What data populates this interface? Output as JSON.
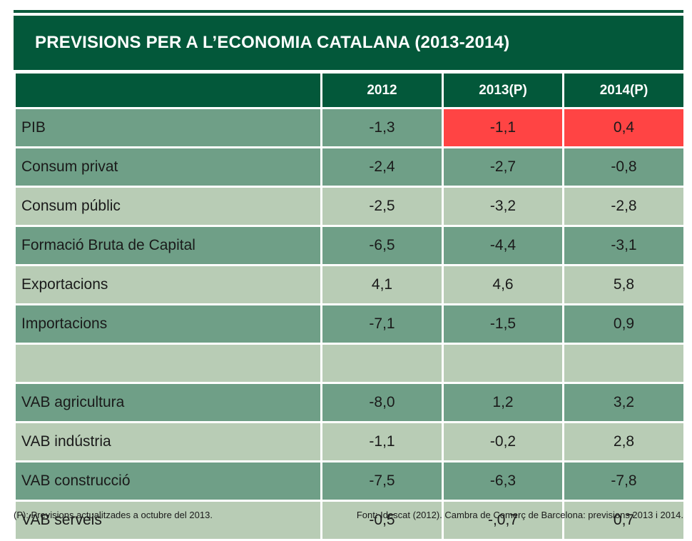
{
  "title": "PREVISIONS PER A L’ECONOMIA CATALANA (2013-2014)",
  "columns": [
    "",
    "2012",
    "2013(P)",
    "2014(P)"
  ],
  "rows": [
    {
      "label": "PIB",
      "values": [
        "-1,3",
        "-1,1",
        "0,4"
      ],
      "highlight": [
        false,
        true,
        true
      ],
      "shade": "dark"
    },
    {
      "label": "Consum privat",
      "values": [
        "-2,4",
        "-2,7",
        "-0,8"
      ],
      "highlight": [
        false,
        false,
        false
      ],
      "shade": "dark"
    },
    {
      "label": "Consum públic",
      "values": [
        "-2,5",
        "-3,2",
        "-2,8"
      ],
      "highlight": [
        false,
        false,
        false
      ],
      "shade": "light"
    },
    {
      "label": "Formació Bruta de Capital",
      "values": [
        "-6,5",
        "-4,4",
        "-3,1"
      ],
      "highlight": [
        false,
        false,
        false
      ],
      "shade": "dark"
    },
    {
      "label": "Exportacions",
      "values": [
        "4,1",
        "4,6",
        "5,8"
      ],
      "highlight": [
        false,
        false,
        false
      ],
      "shade": "light"
    },
    {
      "label": "Importacions",
      "values": [
        "-7,1",
        "-1,5",
        "0,9"
      ],
      "highlight": [
        false,
        false,
        false
      ],
      "shade": "dark"
    },
    {
      "spacer": true
    },
    {
      "label": "VAB agricultura",
      "values": [
        "-8,0",
        "1,2",
        "3,2"
      ],
      "highlight": [
        false,
        false,
        false
      ],
      "shade": "dark"
    },
    {
      "label": "VAB indústria",
      "values": [
        "-1,1",
        "-0,2",
        "2,8"
      ],
      "highlight": [
        false,
        false,
        false
      ],
      "shade": "light"
    },
    {
      "label": "VAB construcció",
      "values": [
        "-7,5",
        "-6,3",
        "-7,8"
      ],
      "highlight": [
        false,
        false,
        false
      ],
      "shade": "dark"
    },
    {
      "label": "VAB serveis",
      "values": [
        "-0,5",
        "-,0,7",
        "0,7"
      ],
      "highlight": [
        false,
        false,
        false
      ],
      "shade": "light"
    }
  ],
  "colors": {
    "header": "#03583a",
    "row_dark": "#6f9f87",
    "row_light": "#b8ccb5",
    "highlight": "#ff4444"
  },
  "footer": {
    "note": "(P): Previsions actualitzades a octubre del 2013.",
    "source": "Font: Idescat (2012). Cambra de Comerç de Barcelona: previsions 2013 i 2014."
  }
}
